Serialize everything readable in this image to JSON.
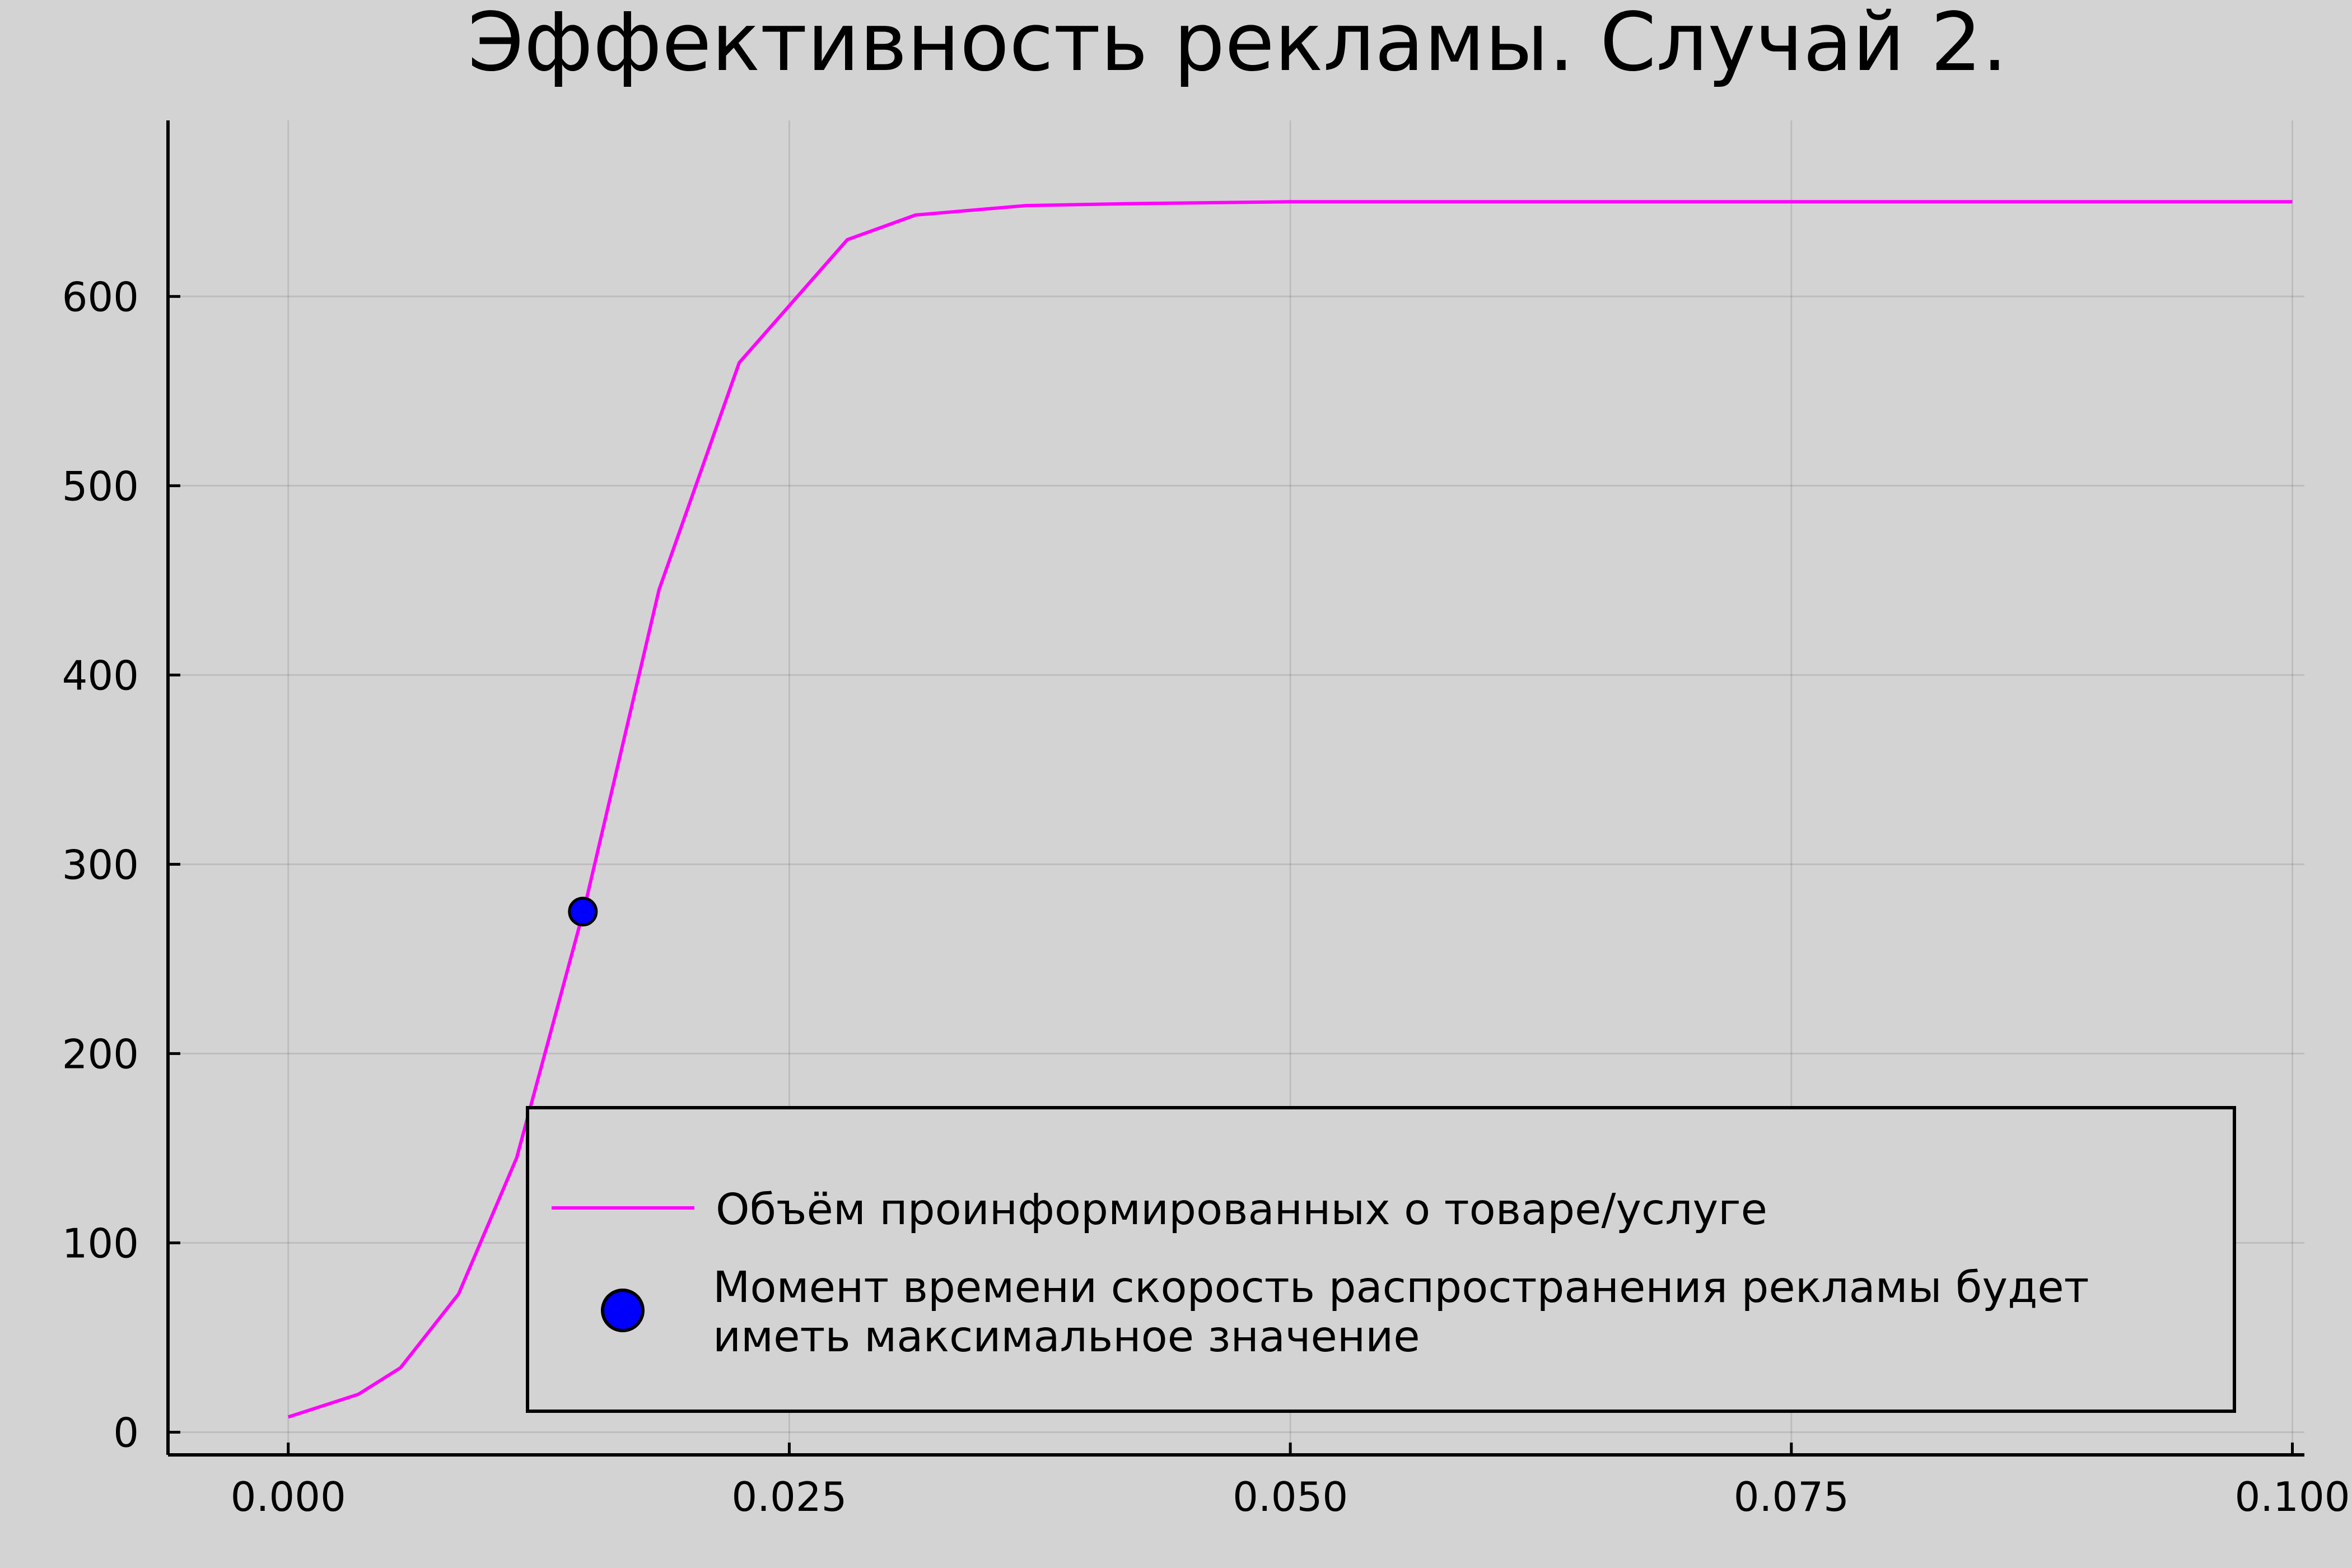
{
  "chart_data": {
    "type": "line",
    "title": "Эффективность рекламы. Случай 2.",
    "xlabel": "",
    "ylabel": "",
    "xlim": [
      -0.006,
      0.1006
    ],
    "ylim": [
      -12,
      693
    ],
    "x_ticks": [
      "0.000",
      "0.025",
      "0.050",
      "0.075",
      "0.100"
    ],
    "x_tick_values": [
      0.0,
      0.025,
      0.05,
      0.075,
      0.1
    ],
    "y_ticks": [
      "0",
      "100",
      "200",
      "300",
      "400",
      "500",
      "600"
    ],
    "y_tick_values": [
      0,
      100,
      200,
      300,
      400,
      500,
      600
    ],
    "grid": true,
    "legend_position": "bottom-right",
    "series": [
      {
        "name": "Объём проинформированных о товаре/услуге",
        "kind": "line",
        "color": "#ff00ff",
        "x": [
          0.0,
          0.0035,
          0.0056,
          0.0085,
          0.0114,
          0.0148,
          0.0185,
          0.0225,
          0.0279,
          0.0313,
          0.0368,
          0.0418,
          0.05,
          0.06,
          0.07,
          0.08,
          0.09,
          0.1
        ],
        "y": [
          8,
          20,
          34,
          73,
          145,
          278,
          445,
          565,
          630,
          643,
          648,
          649,
          650,
          650,
          650,
          650,
          650,
          650
        ]
      },
      {
        "name": "Момент времени скорость распространения рекламы будет иметь максимальное значение",
        "kind": "scatter",
        "color": "#0000ff",
        "x": [
          0.0147
        ],
        "y": [
          275
        ]
      }
    ],
    "legend_lines": [
      [
        "Объём проинформированных о товаре/услуге"
      ],
      [
        "Момент времени скорость распространения рекламы будет",
        "иметь максимальное значение"
      ]
    ]
  }
}
